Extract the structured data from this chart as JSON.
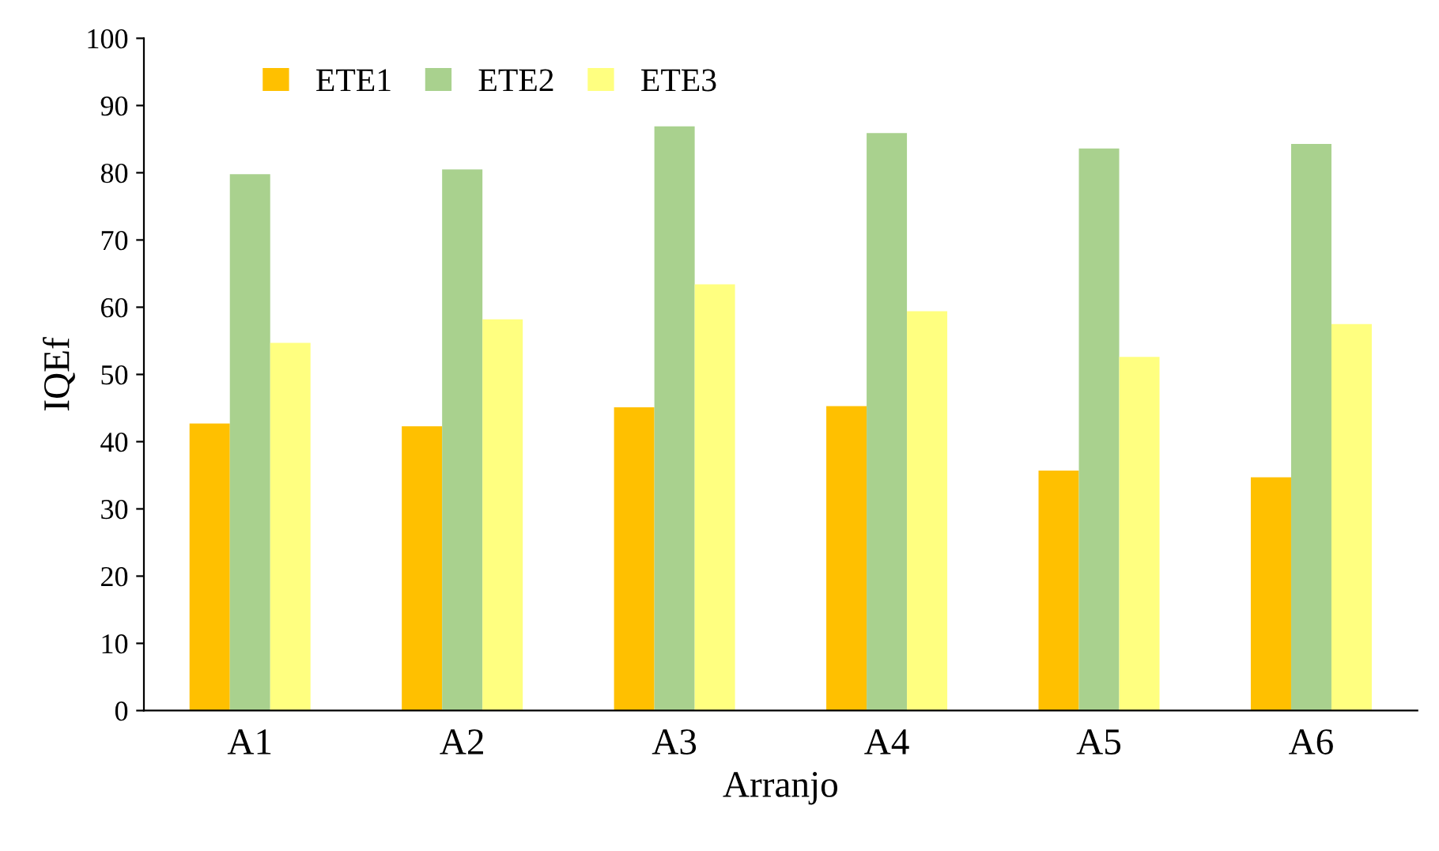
{
  "chart_data": {
    "type": "bar",
    "xlabel": "Arranjo",
    "ylabel": "IQEf",
    "categories": [
      "A1",
      "A2",
      "A3",
      "A4",
      "A5",
      "A6"
    ],
    "series": [
      {
        "name": "ETE1",
        "color": "#ffc000",
        "values": [
          42.7,
          42.3,
          45.1,
          45.3,
          35.7,
          34.7
        ]
      },
      {
        "name": "ETE2",
        "color": "#a9d18e",
        "values": [
          79.8,
          80.5,
          86.9,
          85.9,
          83.6,
          84.3
        ]
      },
      {
        "name": "ETE3",
        "color": "#ffff80",
        "values": [
          54.7,
          58.2,
          63.4,
          59.4,
          52.6,
          57.5
        ]
      }
    ],
    "ylim": [
      0,
      100
    ],
    "yticks": [
      0,
      10,
      20,
      30,
      40,
      50,
      60,
      70,
      80,
      90,
      100
    ],
    "grid": false,
    "legend": "top left"
  }
}
